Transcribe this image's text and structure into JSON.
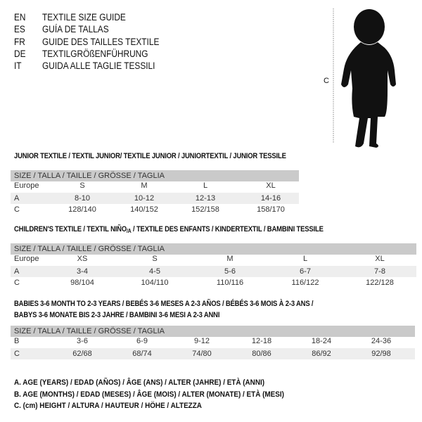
{
  "languages": [
    {
      "code": "EN",
      "title": "TEXTILE SIZE GUIDE"
    },
    {
      "code": "ES",
      "title": "GUÍA DE TALLAS"
    },
    {
      "code": "FR",
      "title": "GUIDE DES TAILLES TEXTILE"
    },
    {
      "code": "DE",
      "title": "TEXTILGRÖßENFÜHRUNG"
    },
    {
      "code": "IT",
      "title": "GUIDA ALLE TAGLIE TESSILI"
    }
  ],
  "figure": {
    "measure_label": "C"
  },
  "junior": {
    "title": "JUNIOR TEXTILE / TEXTIL JUNIOR/ TEXTILE JUNIOR / JUNIORTEXTIL / JUNIOR TESSILE",
    "header": "SIZE / TALLA / TAILLE / GRÖSSE / TAGLIA",
    "rows": [
      {
        "label": "Europe",
        "values": [
          "S",
          "M",
          "L",
          "XL"
        ]
      },
      {
        "label": "A",
        "values": [
          "8-10",
          "10-12",
          "12-13",
          "14-16"
        ]
      },
      {
        "label": "C",
        "values": [
          "128/140",
          "140/152",
          "152/158",
          "158/170"
        ]
      }
    ]
  },
  "children": {
    "title_a": "CHILDREN'S TEXTILE / TEXTIL NIÑO",
    "title_sub": "/A",
    "title_b": " / TEXTILE DES ENFANTS / KINDERTEXTIL / BAMBINI TESSILE",
    "header": "SIZE / TALLA / TAILLE / GRÖSSE / TAGLIA",
    "rows": [
      {
        "label": "Europe",
        "values": [
          "XS",
          "S",
          "M",
          "L",
          "XL"
        ]
      },
      {
        "label": "A",
        "values": [
          "3-4",
          "4-5",
          "5-6",
          "6-7",
          "7-8"
        ]
      },
      {
        "label": "C",
        "values": [
          "98/104",
          "104/110",
          "110/116",
          "116/122",
          "122/128"
        ]
      }
    ]
  },
  "babies": {
    "title_line1": "BABIES 3-6 MONTH TO 2-3 YEARS / BEBÉS 3-6 MESES A 2-3 AÑOS / BÉBÉS 3-6 MOIS À 2-3 ANS /",
    "title_line2": "BABYS 3-6 MONATE BIS 2-3 JAHRE / BAMBINI 3-6 MESI A 2-3 ANNI",
    "header": "SIZE / TALLA / TAILLE / GRÖSSE / TAGLIA",
    "rows": [
      {
        "label": "B",
        "values": [
          "3-6",
          "6-9",
          "9-12",
          "12-18",
          "18-24",
          "24-36"
        ]
      },
      {
        "label": "C",
        "values": [
          "62/68",
          "68/74",
          "74/80",
          "80/86",
          "86/92",
          "92/98"
        ]
      }
    ]
  },
  "legend": [
    "A. AGE (YEARS) / EDAD (AÑOS) / ÂGE (ANS) / ALTER (JAHRE) / ETÀ (ANNI)",
    "B. AGE (MONTHS) / EDAD (MESES) / ÂGE (MOIS) / ALTER (MONATE) / ETÀ (MESI)",
    "C. (cm) HEIGHT / ALTURA / HAUTEUR / HÖHE / ALTEZZA"
  ]
}
